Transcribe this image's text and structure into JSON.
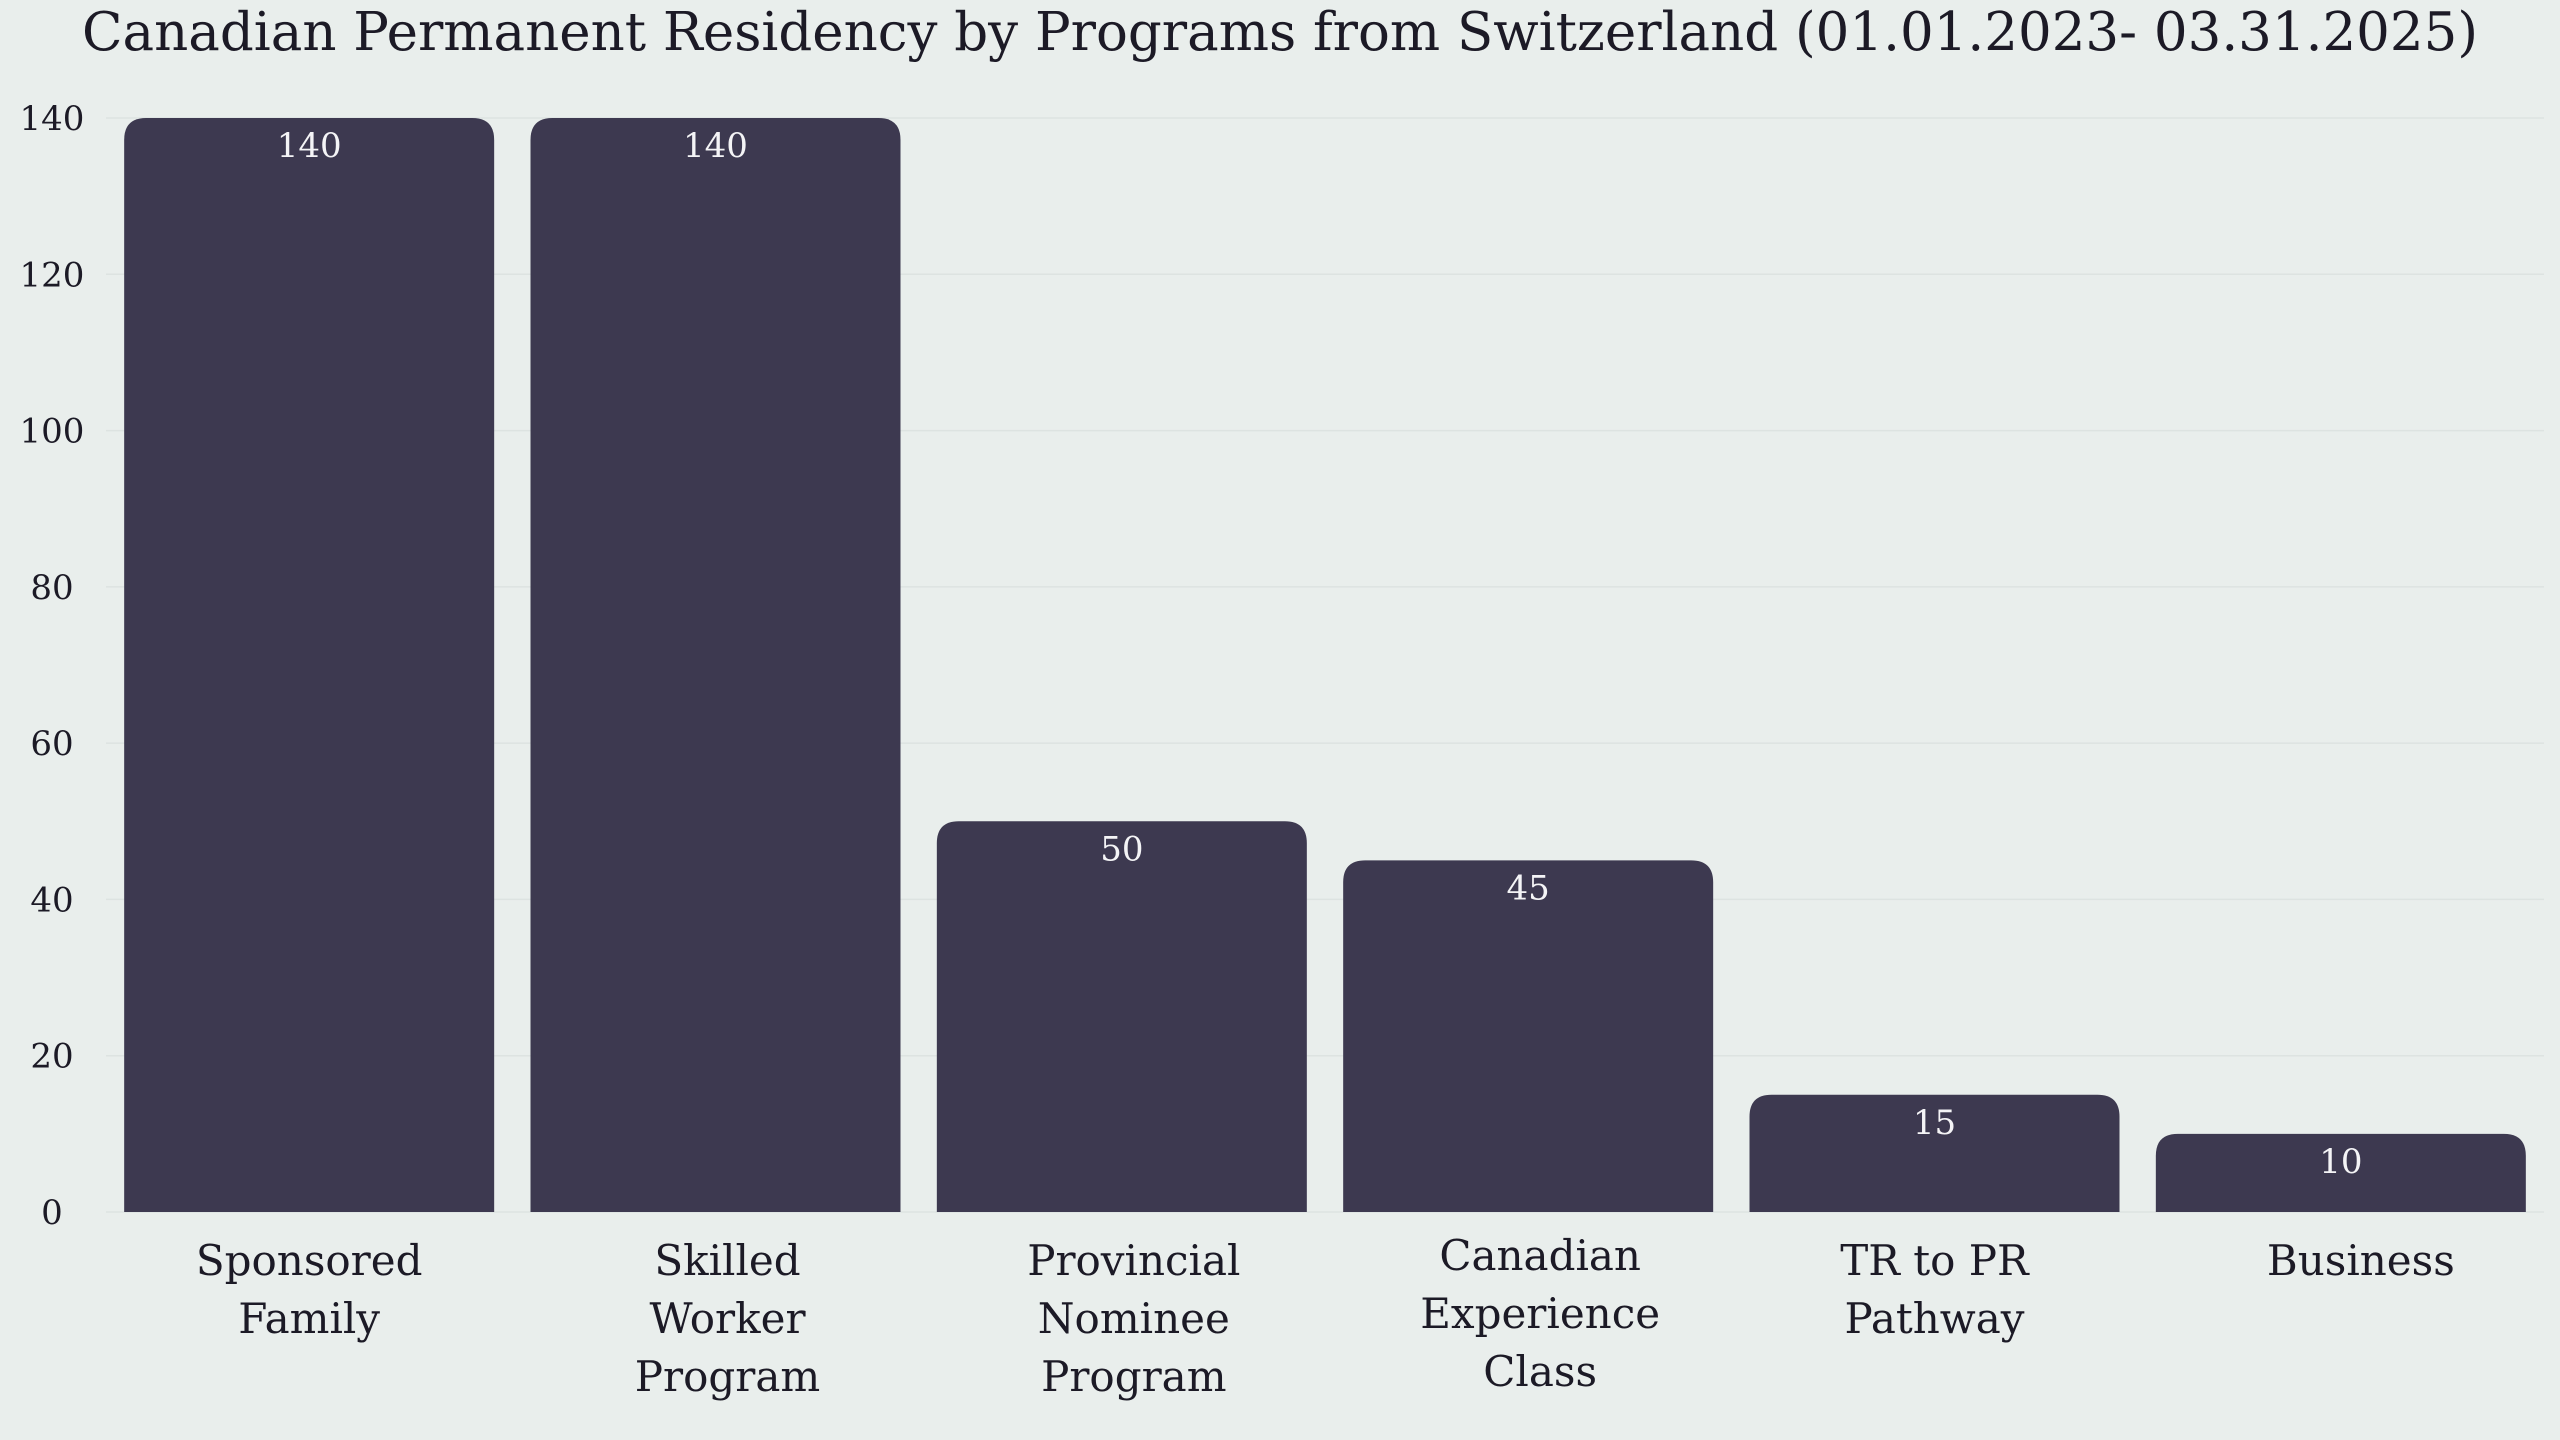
{
  "chart_data": {
    "type": "bar",
    "title": "Canadian Permanent Residency by Programs from Switzerland (01.01.2023- 03.31.2025)",
    "xlabel": "",
    "ylabel": "",
    "categories": [
      [
        "Sponsored",
        "Family"
      ],
      [
        "Skilled",
        "Worker",
        "Program"
      ],
      [
        "Provincial",
        "Nominee",
        "Program"
      ],
      [
        "Canadian",
        "Experience",
        "Class"
      ],
      [
        "TR to PR",
        "Pathway"
      ],
      [
        "Business"
      ]
    ],
    "values": [
      140,
      140,
      50,
      45,
      15,
      10
    ],
    "data_labels": [
      "140",
      "140",
      "50",
      "45",
      "15",
      "10"
    ],
    "ylim": [
      0,
      140
    ],
    "yticks": [
      0,
      20,
      40,
      60,
      80,
      100,
      120,
      140
    ],
    "grid": true,
    "legend": "none",
    "colors": {
      "bar": "#3d3950",
      "background": "#e9eeec",
      "grid": "#dde3e1",
      "label": "#f4f4f6",
      "text": "#1c1a26"
    }
  }
}
